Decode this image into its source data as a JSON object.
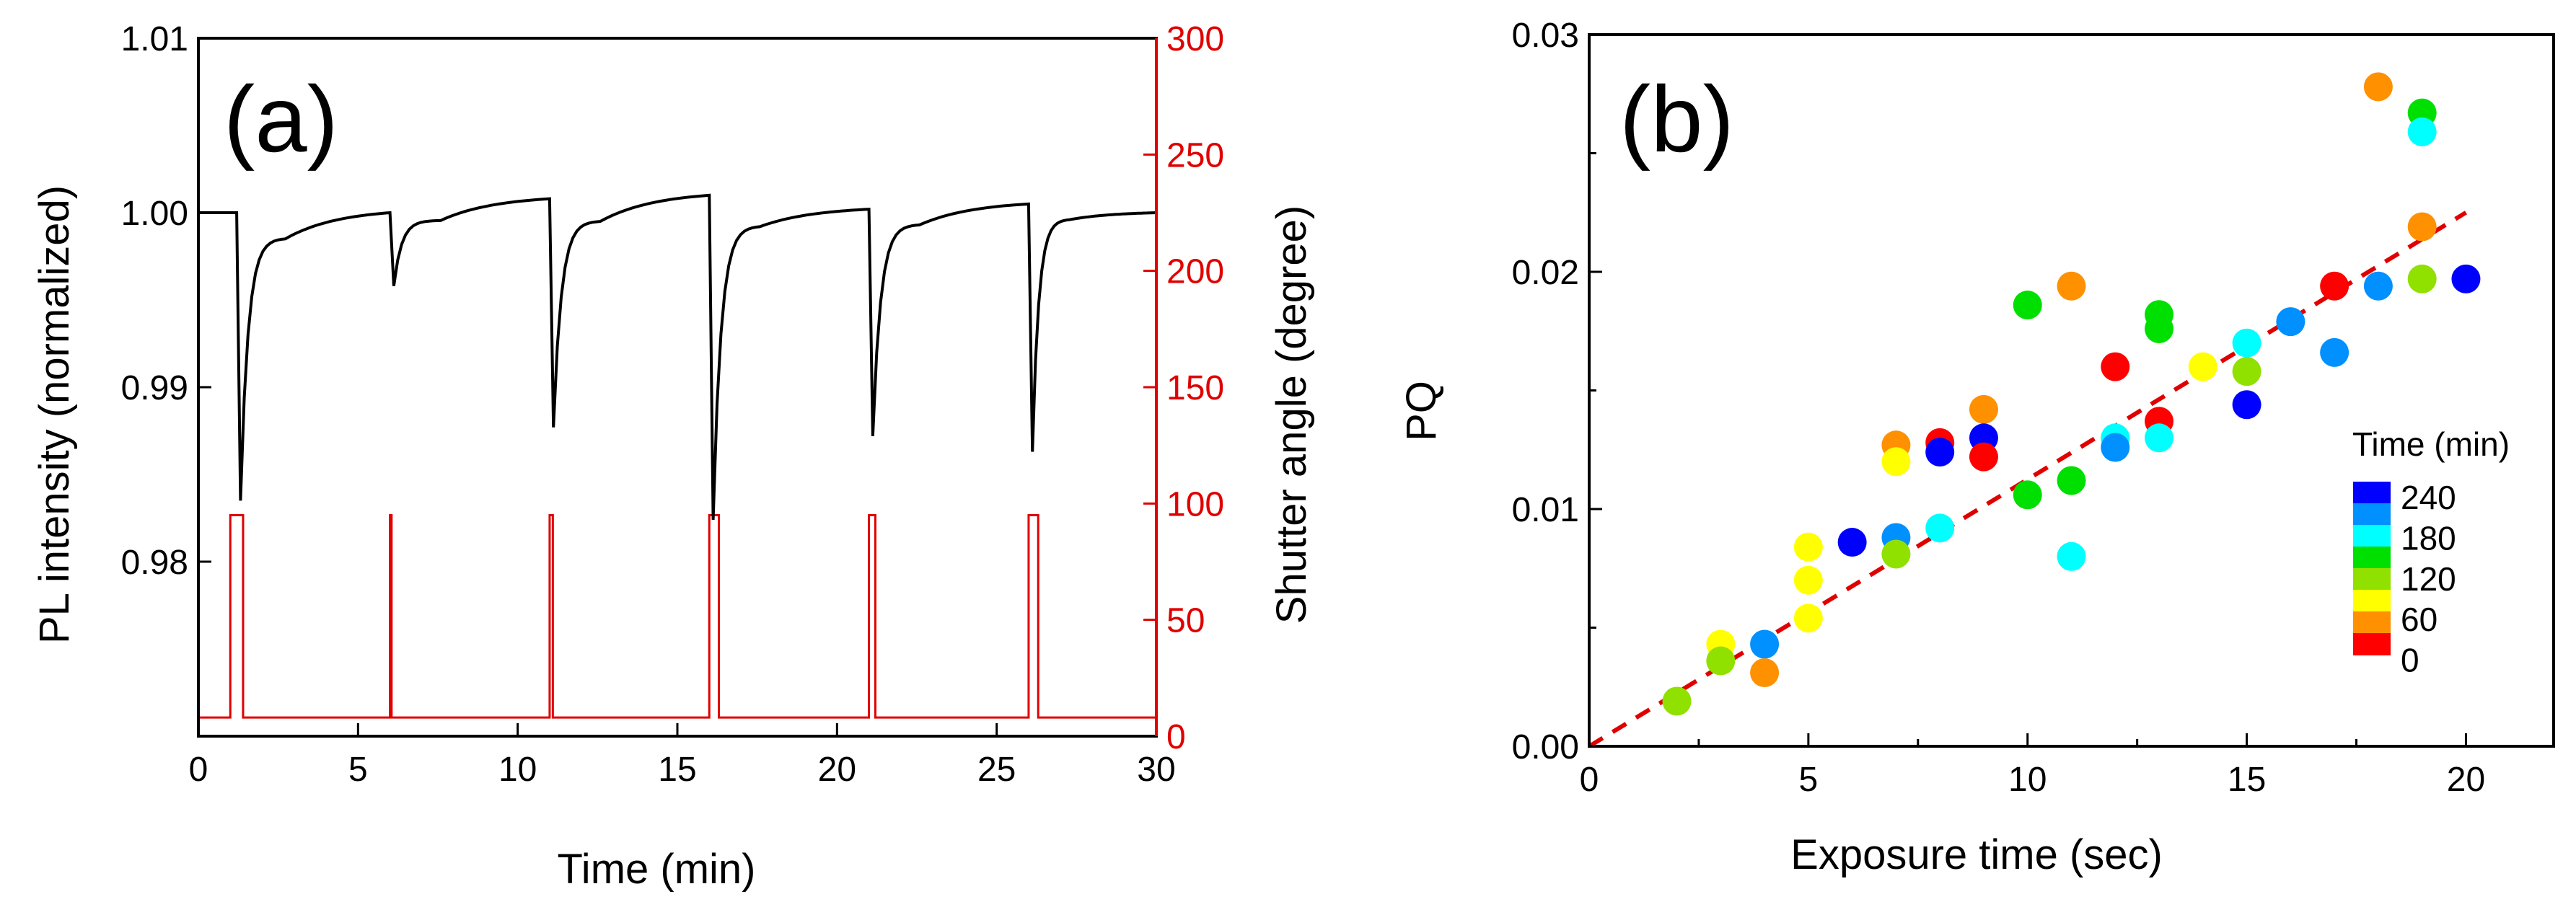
{
  "chart_data": [
    {
      "type": "line",
      "panel_label": "(a)",
      "xlabel": "Time (min)",
      "ylabel": "PL intensity (normalized)",
      "ylabel_right": "Shutter angle (degree)",
      "xlim": [
        0,
        30
      ],
      "ylim": [
        0.97,
        1.01
      ],
      "ylim_right": [
        0,
        300
      ],
      "x_ticks": [
        0,
        5,
        10,
        15,
        20,
        25,
        30
      ],
      "y_ticks": [
        0.98,
        0.99,
        1.0,
        1.01
      ],
      "y_tick_labels": [
        "0.98",
        "0.99",
        "1.00",
        "1.01"
      ],
      "y_right_ticks": [
        0,
        50,
        100,
        150,
        200,
        250,
        300
      ],
      "colors": {
        "pl": "#000000",
        "shutter": "#e00000"
      },
      "series": [
        {
          "name": "PL intensity",
          "axis": "left",
          "events": [
            {
              "t": 1.2,
              "pre": 1.0,
              "min": 0.9835,
              "settle": 0.9985
            },
            {
              "t": 6.0,
              "pre": 1.0,
              "min": 0.9958,
              "settle": 0.99955
            },
            {
              "t": 11.0,
              "pre": 1.0008,
              "min": 0.9877,
              "settle": 0.9995
            },
            {
              "t": 16.0,
              "pre": 1.001,
              "min": 0.9824,
              "settle": 0.9992
            },
            {
              "t": 21.0,
              "pre": 1.0002,
              "min": 0.9872,
              "settle": 0.9993
            },
            {
              "t": 26.0,
              "pre": 1.0005,
              "min": 0.9863,
              "settle": 0.9996
            }
          ],
          "end_value": 1.0
        },
        {
          "name": "Shutter angle",
          "axis": "right",
          "baseline": 8,
          "pulses": [
            {
              "start": 1.0,
              "end": 1.4,
              "height": 95
            },
            {
              "start": 6.0,
              "end": 6.05,
              "height": 95
            },
            {
              "start": 11.0,
              "end": 11.1,
              "height": 95
            },
            {
              "start": 16.0,
              "end": 16.3,
              "height": 95
            },
            {
              "start": 21.0,
              "end": 21.2,
              "height": 95
            },
            {
              "start": 26.0,
              "end": 26.3,
              "height": 95
            }
          ]
        }
      ]
    },
    {
      "type": "scatter",
      "panel_label": "(b)",
      "xlabel": "Exposure time (sec)",
      "ylabel": "PQ",
      "xlim": [
        0,
        22
      ],
      "ylim": [
        0,
        0.03
      ],
      "x_ticks": [
        0,
        5,
        10,
        15,
        20
      ],
      "y_ticks": [
        0,
        0.01,
        0.02,
        0.03
      ],
      "y_tick_labels": [
        "0.00",
        "0.01",
        "0.02",
        "0.03"
      ],
      "fit_line": {
        "x": [
          0,
          20
        ],
        "y": [
          0,
          0.0225
        ],
        "color": "#e00000",
        "style": "dashed"
      },
      "legend": {
        "title": "Time (min)",
        "labels": [
          "240",
          "180",
          "120",
          "60",
          "0"
        ],
        "colors": [
          "#0000ff",
          "#0090ff",
          "#00ffff",
          "#00e000",
          "#90e000",
          "#ffff00",
          "#ff9000",
          "#ff0000"
        ],
        "placement": "bottom-right"
      },
      "points": [
        {
          "x": 2,
          "y": 0.0019,
          "c": "#90e000"
        },
        {
          "x": 3,
          "y": 0.0043,
          "c": "#ffff00"
        },
        {
          "x": 3,
          "y": 0.0036,
          "c": "#90e000"
        },
        {
          "x": 4,
          "y": 0.0043,
          "c": "#0090ff"
        },
        {
          "x": 4,
          "y": 0.0031,
          "c": "#ff9000"
        },
        {
          "x": 5,
          "y": 0.0084,
          "c": "#ffff00"
        },
        {
          "x": 5,
          "y": 0.007,
          "c": "#ffff00"
        },
        {
          "x": 5,
          "y": 0.0054,
          "c": "#ffff00"
        },
        {
          "x": 6,
          "y": 0.0086,
          "c": "#0000ff"
        },
        {
          "x": 7,
          "y": 0.0127,
          "c": "#ff9000"
        },
        {
          "x": 7,
          "y": 0.012,
          "c": "#ffff00"
        },
        {
          "x": 7,
          "y": 0.0088,
          "c": "#0090ff"
        },
        {
          "x": 7,
          "y": 0.0081,
          "c": "#90e000"
        },
        {
          "x": 8,
          "y": 0.0128,
          "c": "#ff0000"
        },
        {
          "x": 8,
          "y": 0.0124,
          "c": "#0000ff"
        },
        {
          "x": 8,
          "y": 0.0092,
          "c": "#00ffff"
        },
        {
          "x": 9,
          "y": 0.0142,
          "c": "#ff9000"
        },
        {
          "x": 9,
          "y": 0.013,
          "c": "#0000ff"
        },
        {
          "x": 9,
          "y": 0.0122,
          "c": "#ff0000"
        },
        {
          "x": 10,
          "y": 0.0186,
          "c": "#00e000"
        },
        {
          "x": 10,
          "y": 0.0106,
          "c": "#00e000"
        },
        {
          "x": 11,
          "y": 0.0194,
          "c": "#ff9000"
        },
        {
          "x": 11,
          "y": 0.0112,
          "c": "#00e000"
        },
        {
          "x": 11,
          "y": 0.008,
          "c": "#00ffff"
        },
        {
          "x": 12,
          "y": 0.016,
          "c": "#ff0000"
        },
        {
          "x": 12,
          "y": 0.013,
          "c": "#00ffff"
        },
        {
          "x": 12,
          "y": 0.0126,
          "c": "#0090ff"
        },
        {
          "x": 13,
          "y": 0.0182,
          "c": "#00e000"
        },
        {
          "x": 13,
          "y": 0.0176,
          "c": "#00e000"
        },
        {
          "x": 13,
          "y": 0.0137,
          "c": "#ff0000"
        },
        {
          "x": 13,
          "y": 0.013,
          "c": "#00ffff"
        },
        {
          "x": 14,
          "y": 0.016,
          "c": "#ffff00"
        },
        {
          "x": 15,
          "y": 0.017,
          "c": "#00ffff"
        },
        {
          "x": 15,
          "y": 0.0158,
          "c": "#90e000"
        },
        {
          "x": 15,
          "y": 0.0144,
          "c": "#0000ff"
        },
        {
          "x": 16,
          "y": 0.0179,
          "c": "#0090ff"
        },
        {
          "x": 17,
          "y": 0.0194,
          "c": "#ff0000"
        },
        {
          "x": 17,
          "y": 0.0166,
          "c": "#0090ff"
        },
        {
          "x": 18,
          "y": 0.0278,
          "c": "#ff9000"
        },
        {
          "x": 18,
          "y": 0.0194,
          "c": "#0090ff"
        },
        {
          "x": 19,
          "y": 0.0267,
          "c": "#00e000"
        },
        {
          "x": 19,
          "y": 0.0259,
          "c": "#00ffff"
        },
        {
          "x": 19,
          "y": 0.0219,
          "c": "#ff9000"
        },
        {
          "x": 19,
          "y": 0.0197,
          "c": "#90e000"
        },
        {
          "x": 20,
          "y": 0.0197,
          "c": "#0000ff"
        }
      ]
    }
  ]
}
